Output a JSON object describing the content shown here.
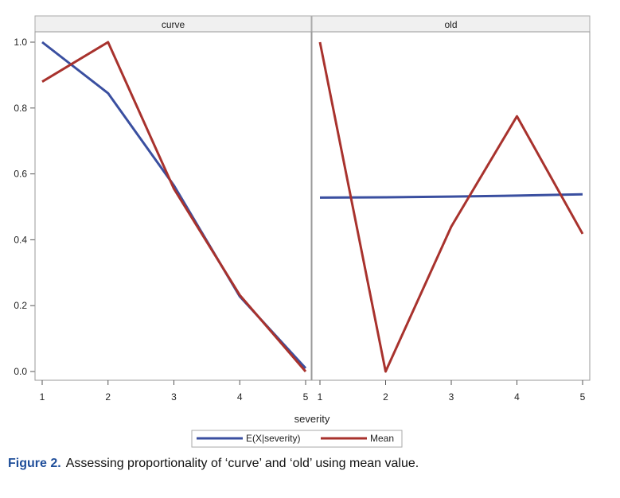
{
  "chart_data": {
    "type": "line",
    "xlabel": "severity",
    "panels": [
      {
        "title": "curve",
        "x": [
          1,
          2,
          3,
          4,
          5
        ],
        "series": [
          {
            "name": "E(X|severity)",
            "color": "#3a4fa0",
            "values": [
              1.0,
              0.845,
              0.565,
              0.228,
              0.01
            ]
          },
          {
            "name": "Mean",
            "color": "#a8322d",
            "values": [
              0.88,
              1.0,
              0.555,
              0.232,
              0.0
            ]
          }
        ]
      },
      {
        "title": "old",
        "x": [
          1,
          2,
          3,
          4,
          5
        ],
        "series": [
          {
            "name": "E(X|severity)",
            "color": "#3a4fa0",
            "values": [
              0.528,
              0.529,
              0.531,
              0.534,
              0.538
            ]
          },
          {
            "name": "Mean",
            "color": "#a8322d",
            "values": [
              1.0,
              0.0,
              0.44,
              0.775,
              0.418
            ]
          }
        ]
      }
    ],
    "ylim": [
      0,
      1
    ],
    "yticks": [
      "0.0",
      "0.2",
      "0.4",
      "0.6",
      "0.8",
      "1.0"
    ],
    "yticks_values": [
      0,
      0.2,
      0.4,
      0.6,
      0.8,
      1.0
    ],
    "xticks": [
      "1",
      "2",
      "3",
      "4",
      "5"
    ],
    "legend": {
      "placement": "bottom",
      "items": [
        {
          "label": "E(X|severity)",
          "color": "#3a4fa0"
        },
        {
          "label": "Mean",
          "color": "#a8322d"
        }
      ]
    }
  },
  "caption": {
    "label": "Figure 2.",
    "text": "Assessing proportionality of ‘curve’ and ‘old’ using mean value."
  }
}
